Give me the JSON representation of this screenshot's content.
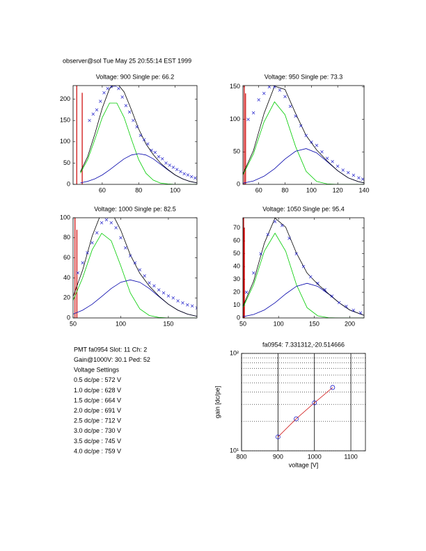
{
  "header": "observer@sol  Tue May 25 20:55:14 EST 1999",
  "info": [
    "PMT fa0954 Slot: 11 Ch: 2",
    "Gain@1000V: 30.1 Ped: 52",
    "Voltage Settings",
    "0.5 dc/pe : 572 V",
    "1.0 dc/pe : 628 V",
    "1.5 dc/pe : 664 V",
    "2.0 dc/pe : 691 V",
    "2.5 dc/pe : 712 V",
    "3.0 dc/pe : 730 V",
    "3.5 dc/pe : 745 V",
    "4.0 dc/pe : 759 V"
  ],
  "chart_data": [
    {
      "type": "scatter",
      "title": "Voltage: 900 Single pe: 66.2",
      "xlim": [
        44,
        112
      ],
      "xticks": [
        60,
        80,
        100
      ],
      "ylim": [
        0,
        232
      ],
      "yticks": [
        0,
        50,
        100,
        150,
        200
      ],
      "series": [
        {
          "color": "#cc0000",
          "style": "stem",
          "x": [
            46,
            49
          ],
          "values": [
            232,
            215
          ]
        },
        {
          "color": "#00cc00",
          "style": "line",
          "x": [
            48,
            52,
            56,
            60,
            64,
            68,
            72,
            76,
            80,
            84,
            88,
            92,
            96,
            100,
            104,
            108,
            112
          ],
          "values": [
            26.5,
            58,
            106,
            157,
            191,
            191,
            157,
            106,
            58,
            26,
            10,
            3,
            1,
            0,
            0,
            0,
            0
          ]
        },
        {
          "color": "#0000aa",
          "style": "line",
          "x": [
            48,
            52,
            56,
            60,
            64,
            68,
            72,
            76,
            80,
            84,
            88,
            92,
            96,
            100,
            104,
            108,
            112
          ],
          "values": [
            3.5,
            7,
            13,
            22,
            34,
            47,
            60,
            69,
            72,
            69,
            60,
            47,
            34,
            22,
            13,
            7,
            3.5
          ]
        },
        {
          "color": "#000000",
          "style": "line",
          "x": [
            48,
            52,
            56,
            60,
            64,
            68,
            72,
            76,
            80,
            84,
            88,
            92,
            96,
            100,
            104,
            108,
            112
          ],
          "values": [
            29.5,
            65,
            119,
            179,
            225,
            238,
            217,
            175,
            130,
            95,
            70,
            50,
            35,
            22,
            13,
            7,
            3.5
          ]
        },
        {
          "color": "#2222cc",
          "style": "x",
          "x": [
            53,
            55,
            57,
            59,
            61,
            63,
            65,
            67,
            69,
            71,
            73,
            75,
            77,
            79,
            81,
            83,
            85,
            87,
            89,
            91,
            93,
            95,
            97,
            99,
            101,
            103,
            105,
            107,
            109,
            111
          ],
          "values": [
            150,
            165,
            175,
            195,
            215,
            225,
            230,
            232,
            225,
            205,
            185,
            170,
            150,
            135,
            115,
            105,
            95,
            80,
            75,
            65,
            60,
            50,
            45,
            40,
            35,
            30,
            25,
            22,
            18,
            15
          ]
        }
      ]
    },
    {
      "type": "scatter",
      "title": "Voltage: 950 Single pe: 73.3",
      "xlim": [
        48,
        140
      ],
      "xticks": [
        60,
        80,
        100,
        120,
        140
      ],
      "ylim": [
        0,
        152
      ],
      "yticks": [
        0,
        50,
        100,
        150
      ],
      "series": [
        {
          "color": "#cc0000",
          "style": "stem",
          "x": [
            49,
            50
          ],
          "values": [
            152,
            140
          ]
        },
        {
          "color": "#00cc00",
          "style": "line",
          "x": [
            48,
            56,
            64,
            72,
            80,
            88,
            96,
            104,
            112,
            120,
            128,
            136,
            140
          ],
          "values": [
            14.5,
            47,
            96,
            127,
            107,
            58,
            20,
            4.5,
            0.6,
            0,
            0,
            0,
            0
          ]
        },
        {
          "color": "#0000aa",
          "style": "line",
          "x": [
            48,
            56,
            64,
            72,
            80,
            88,
            96,
            104,
            112,
            120,
            128,
            136,
            140
          ],
          "values": [
            1.8,
            5.2,
            12.5,
            24,
            39,
            51,
            55,
            48.5,
            35,
            21,
            10,
            4,
            2.4
          ]
        },
        {
          "color": "#000000",
          "style": "line",
          "x": [
            48,
            56,
            64,
            72,
            80,
            88,
            96,
            104,
            112,
            120,
            128,
            136,
            140
          ],
          "values": [
            16,
            52,
            109,
            151,
            146,
            109,
            75,
            53,
            36,
            21,
            10,
            4,
            2.4
          ]
        },
        {
          "color": "#2222cc",
          "style": "x",
          "x": [
            52,
            56,
            60,
            64,
            68,
            72,
            76,
            80,
            84,
            88,
            92,
            96,
            100,
            104,
            108,
            112,
            116,
            120,
            124,
            128,
            132,
            136,
            139
          ],
          "values": [
            100,
            110,
            130,
            140,
            150,
            150,
            145,
            135,
            120,
            105,
            90,
            75,
            65,
            60,
            50,
            40,
            35,
            28,
            22,
            18,
            14,
            10,
            8
          ]
        }
      ]
    },
    {
      "type": "scatter",
      "title": "Voltage: 1000 Single pe: 82.5",
      "xlim": [
        50,
        180
      ],
      "xticks": [
        50,
        100,
        150
      ],
      "ylim": [
        0,
        100
      ],
      "yticks": [
        0,
        20,
        40,
        60,
        80,
        100
      ],
      "series": [
        {
          "color": "#cc0000",
          "style": "stem",
          "x": [
            52,
            54
          ],
          "values": [
            100,
            88
          ]
        },
        {
          "color": "#00cc00",
          "style": "line",
          "x": [
            50,
            60,
            70,
            80,
            90,
            100,
            110,
            120,
            130,
            140,
            150,
            160,
            170,
            180
          ],
          "values": [
            17.5,
            40,
            68,
            84.5,
            77,
            52,
            25,
            9,
            2.4,
            0.5,
            0,
            0,
            0,
            0
          ]
        },
        {
          "color": "#0000aa",
          "style": "line",
          "x": [
            50,
            60,
            70,
            80,
            90,
            100,
            110,
            120,
            130,
            140,
            150,
            160,
            170,
            180
          ],
          "values": [
            3.8,
            7.7,
            13.7,
            21.4,
            29.4,
            35.6,
            38,
            35.6,
            29.4,
            21.4,
            13.7,
            7.7,
            3.8,
            1.7
          ]
        },
        {
          "color": "#000000",
          "style": "line",
          "x": [
            50,
            60,
            70,
            80,
            90,
            100,
            110,
            120,
            130,
            140,
            150,
            160,
            170,
            180
          ],
          "values": [
            21.3,
            47.7,
            81.7,
            105.9,
            106.4,
            87.6,
            63,
            44.6,
            31.8,
            21.9,
            13.7,
            7.7,
            3.8,
            1.7
          ]
        },
        {
          "color": "#2222cc",
          "style": "x",
          "x": [
            55,
            60,
            65,
            70,
            75,
            80,
            85,
            90,
            95,
            100,
            105,
            110,
            115,
            120,
            125,
            130,
            135,
            140,
            145,
            150,
            155,
            160,
            165,
            170,
            175,
            180
          ],
          "values": [
            45,
            55,
            65,
            75,
            85,
            95,
            98,
            95,
            90,
            80,
            70,
            62,
            55,
            48,
            42,
            35,
            32,
            28,
            25,
            22,
            20,
            17,
            15,
            13,
            12,
            10
          ]
        }
      ]
    },
    {
      "type": "scatter",
      "title": "Voltage: 1050 Single pe: 95.4",
      "xlim": [
        50,
        220
      ],
      "xticks": [
        50,
        100,
        150,
        200
      ],
      "ylim": [
        0,
        78
      ],
      "yticks": [
        0,
        10,
        20,
        30,
        40,
        50,
        60,
        70
      ],
      "series": [
        {
          "color": "#cc0000",
          "style": "stem",
          "x": [
            51,
            52
          ],
          "values": [
            78,
            70
          ]
        },
        {
          "color": "#00cc00",
          "style": "line",
          "x": [
            50,
            65,
            80,
            95,
            110,
            125,
            140,
            155,
            170,
            185,
            200,
            220
          ],
          "values": [
            8,
            26,
            52,
            66,
            52,
            26,
            8,
            1.6,
            0.2,
            0,
            0,
            0
          ]
        },
        {
          "color": "#0000aa",
          "style": "line",
          "x": [
            50,
            65,
            80,
            95,
            110,
            125,
            140,
            155,
            170,
            185,
            200,
            220
          ],
          "values": [
            1,
            2.7,
            6.2,
            11.8,
            18.7,
            24.6,
            27,
            24.6,
            18.7,
            11.8,
            6.2,
            2
          ]
        },
        {
          "color": "#000000",
          "style": "line",
          "x": [
            50,
            65,
            80,
            95,
            110,
            125,
            140,
            155,
            170,
            185,
            200,
            220
          ],
          "values": [
            9,
            28.7,
            58.2,
            77.8,
            70.7,
            50.6,
            35,
            26.2,
            18.9,
            11.8,
            6.2,
            2
          ]
        },
        {
          "color": "#2222cc",
          "style": "x",
          "x": [
            55,
            65,
            75,
            85,
            95,
            105,
            115,
            125,
            135,
            145,
            155,
            165,
            175,
            185,
            195,
            205,
            215
          ],
          "values": [
            20,
            35,
            50,
            65,
            75,
            72,
            62,
            50,
            40,
            32,
            27,
            22,
            17,
            12,
            9,
            6,
            4
          ]
        }
      ]
    },
    {
      "type": "line",
      "title": "fa0954: 7.331312,-20.514666",
      "xlabel": "voltage [V]",
      "ylabel": "gain [dc/pe]",
      "xlim": [
        800,
        1140
      ],
      "xticks": [
        800,
        900,
        1000,
        1100
      ],
      "ylog": true,
      "ylim": [
        10,
        100
      ],
      "yticks": [
        {
          "value": 10,
          "label": "10¹"
        },
        {
          "value": 100,
          "label": "10²"
        }
      ],
      "yminor": [
        20,
        30,
        40,
        50,
        60,
        70,
        80,
        90
      ],
      "grid": true,
      "series": [
        {
          "color": "#cc0000",
          "style": "line",
          "x": [
            900,
            950,
            1000,
            1050
          ],
          "values": [
            13.9,
            21.3,
            31.1,
            44.7
          ]
        },
        {
          "color": "#2222cc",
          "style": "o",
          "x": [
            900,
            950,
            1000,
            1050
          ],
          "values": [
            13.9,
            21.3,
            31.1,
            44.7
          ]
        }
      ]
    }
  ]
}
